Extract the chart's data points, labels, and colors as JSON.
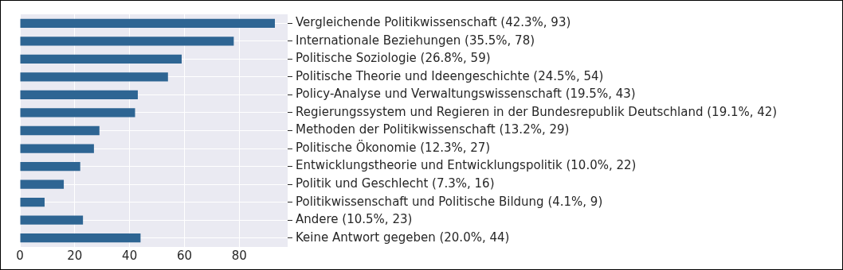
{
  "chart_data": {
    "type": "bar",
    "orientation": "horizontal",
    "categories": [
      "Vergleichende Politikwissenschaft (42.3%, 93)",
      "Internationale Beziehungen (35.5%, 78)",
      "Politische Soziologie (26.8%, 59)",
      "Politische Theorie und Ideengeschichte (24.5%, 54)",
      "Policy-Analyse und Verwaltungswissenschaft (19.5%, 43)",
      "Regierungssystem und Regieren in der Bundesrepublik Deutschland (19.1%, 42)",
      "Methoden der Politikwissenschaft (13.2%, 29)",
      "Politische Ökonomie (12.3%, 27)",
      "Entwicklungstheorie und Entwicklungspolitik (10.0%, 22)",
      "Politik und Geschlecht (7.3%, 16)",
      "Politikwissenschaft und Politische Bildung (4.1%, 9)",
      "Andere (10.5%, 23)",
      "Keine Antwort gegeben (20.0%, 44)"
    ],
    "values": [
      93,
      78,
      59,
      54,
      43,
      42,
      29,
      27,
      22,
      16,
      9,
      23,
      44
    ],
    "color": "#2e6593",
    "xlim": [
      0,
      97.65
    ],
    "xticks": [
      0,
      20,
      40,
      60,
      80
    ],
    "grid": true
  }
}
